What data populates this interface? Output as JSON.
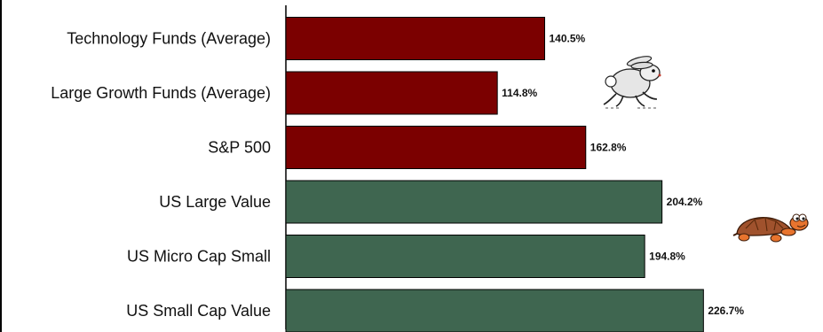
{
  "chart_data": {
    "type": "bar",
    "orientation": "horizontal",
    "categories": [
      "Technology Funds (Average)",
      "Large Growth Funds (Average)",
      "S&P 500",
      "US Large Value",
      "US Micro Cap Small",
      "US Small Cap Value"
    ],
    "values": [
      140.5,
      114.8,
      162.8,
      204.2,
      194.8,
      226.7
    ],
    "value_labels": [
      "140.5%",
      "114.8%",
      "162.8%",
      "204.2%",
      "194.8%",
      "226.7%"
    ],
    "bar_colors": [
      "#7b0000",
      "#7b0000",
      "#7b0000",
      "#3f6650",
      "#3f6650",
      "#3f6650"
    ],
    "xlim": [
      0,
      281
    ],
    "grid": false,
    "title": "",
    "xlabel": "",
    "ylabel": ""
  },
  "illustrations": [
    {
      "icon": "rabbit-icon"
    },
    {
      "icon": "turtle-icon"
    }
  ]
}
